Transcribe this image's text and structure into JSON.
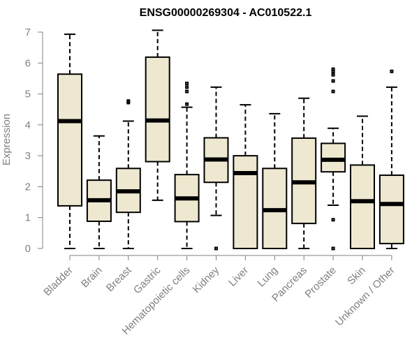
{
  "chart_data": {
    "type": "boxplot",
    "title": "ENSG00000269304 - AC010522.1",
    "xlabel": "",
    "ylabel": "Expression",
    "ylim": [
      0,
      7
    ],
    "yticks": [
      0,
      1,
      2,
      3,
      4,
      5,
      6,
      7
    ],
    "grid": false,
    "box_color": "#EEE8D0",
    "categories": [
      "Bladder",
      "Brain",
      "Breast",
      "Gastric",
      "Hematopoietic cells",
      "Kidney",
      "Liver",
      "Lung",
      "Pancreas",
      "Prostate",
      "Skin",
      "Unknown / Other"
    ],
    "boxes": [
      {
        "whisker_low": 0.0,
        "q1": 1.38,
        "median": 4.12,
        "q3": 5.64,
        "whisker_high": 6.93,
        "outliers": []
      },
      {
        "whisker_low": 0.0,
        "q1": 0.88,
        "median": 1.56,
        "q3": 2.21,
        "whisker_high": 3.64,
        "outliers": []
      },
      {
        "whisker_low": 0.0,
        "q1": 1.17,
        "median": 1.85,
        "q3": 2.59,
        "whisker_high": 4.12,
        "outliers": [
          4.72,
          4.77
        ]
      },
      {
        "whisker_low": 1.56,
        "q1": 2.81,
        "median": 4.14,
        "q3": 6.19,
        "whisker_high": 7.06,
        "outliers": []
      },
      {
        "whisker_low": 0.0,
        "q1": 0.87,
        "median": 1.62,
        "q3": 2.39,
        "whisker_high": 4.57,
        "outliers": [
          4.67,
          5.08,
          5.22,
          5.34
        ]
      },
      {
        "whisker_low": 1.07,
        "q1": 2.14,
        "median": 2.88,
        "q3": 3.58,
        "whisker_high": 5.22,
        "outliers": [
          0.0
        ]
      },
      {
        "whisker_low": 0.0,
        "q1": 0.0,
        "median": 2.44,
        "q3": 3.0,
        "whisker_high": 4.65,
        "outliers": []
      },
      {
        "whisker_low": 0.0,
        "q1": 0.0,
        "median": 1.24,
        "q3": 2.59,
        "whisker_high": 4.36,
        "outliers": []
      },
      {
        "whisker_low": 0.0,
        "q1": 0.81,
        "median": 2.14,
        "q3": 3.57,
        "whisker_high": 4.86,
        "outliers": []
      },
      {
        "whisker_low": 1.4,
        "q1": 2.48,
        "median": 2.87,
        "q3": 3.4,
        "whisker_high": 3.89,
        "outliers": [
          0.0,
          0.93,
          5.08,
          5.42,
          5.62,
          5.73,
          5.8
        ]
      },
      {
        "whisker_low": 0.0,
        "q1": 0.0,
        "median": 1.53,
        "q3": 2.7,
        "whisker_high": 4.28,
        "outliers": []
      },
      {
        "whisker_low": 0.0,
        "q1": 0.16,
        "median": 1.44,
        "q3": 2.37,
        "whisker_high": 5.22,
        "outliers": [
          5.73
        ]
      }
    ]
  }
}
